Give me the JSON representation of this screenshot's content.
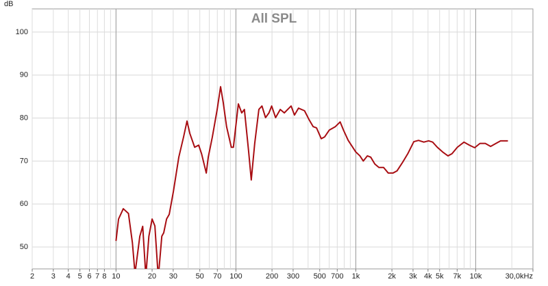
{
  "chart_data": {
    "type": "line",
    "title": "All SPL",
    "y_label": "dB",
    "xscale": "log",
    "xlim": [
      2,
      30000
    ],
    "ylim": [
      44.9,
      105.4
    ],
    "xticks": [
      2,
      3,
      4,
      5,
      6,
      7,
      8,
      10,
      20,
      30,
      50,
      70,
      100,
      200,
      300,
      500,
      700,
      {
        "value": 1000,
        "label": "1k"
      },
      {
        "value": 2000,
        "label": "2k"
      },
      {
        "value": 3000,
        "label": "3k"
      },
      {
        "value": 4000,
        "label": "4k"
      },
      {
        "value": 5000,
        "label": "5k"
      },
      {
        "value": 7000,
        "label": "7k"
      },
      {
        "value": 10000,
        "label": "10k"
      },
      {
        "value": 30000,
        "label": "30,0kHz"
      }
    ],
    "xgrid": [
      2,
      3,
      4,
      5,
      6,
      7,
      8,
      9,
      10,
      20,
      30,
      40,
      50,
      60,
      70,
      80,
      90,
      100,
      200,
      300,
      400,
      500,
      600,
      700,
      800,
      900,
      1000,
      2000,
      3000,
      4000,
      5000,
      6000,
      7000,
      8000,
      9000,
      10000,
      20000
    ],
    "xmajor": [
      10,
      100,
      1000,
      10000
    ],
    "yticks": [
      50,
      60,
      70,
      80,
      90,
      100
    ],
    "grid": true,
    "series": [
      {
        "name": "All SPL",
        "color": "#a80d12",
        "x": [
          10,
          10.5,
          11.5,
          12.7,
          13.7,
          14.4,
          15.8,
          16.7,
          17.6,
          17.8,
          18.8,
          20,
          21.1,
          22.3,
          22.8,
          24.1,
          25,
          26.4,
          27.8,
          30.1,
          33.4,
          36.6,
          39.1,
          41.3,
          45.3,
          48.9,
          51.7,
          56.6,
          58.8,
          63.6,
          69.8,
          74.5,
          78.4,
          83.6,
          91.6,
          95.3,
          104.8,
          111.8,
          117.7,
          127.4,
          134.3,
          143.5,
          155.4,
          164.9,
          176.6,
          188.6,
          198.7,
          214.3,
          234.4,
          253.3,
          270.3,
          288.6,
          308,
          332.6,
          373.5,
          408,
          440.8,
          470.5,
          515,
          549,
          601,
          675,
          740,
          789,
          864,
          1000,
          1082,
          1154,
          1248,
          1331,
          1441,
          1558,
          1704,
          1865,
          2040,
          2205,
          2444,
          2713,
          3045,
          3334,
          3694,
          4045,
          4372,
          4785,
          5300,
          5870,
          6342,
          7025,
          7985,
          8845,
          9800,
          10850,
          12020,
          13310,
          14740,
          16120,
          18560
        ],
        "values": [
          51.4,
          56.5,
          58.9,
          57.8,
          51,
          43.8,
          52.5,
          54.8,
          44.6,
          43.8,
          52.5,
          56.5,
          54.9,
          44.6,
          44.6,
          52.5,
          53.3,
          56.5,
          57.6,
          62.9,
          70.9,
          75.6,
          79.3,
          76.4,
          73.2,
          73.7,
          71.7,
          67.2,
          70.9,
          75.6,
          82,
          87.3,
          83.6,
          78,
          73.2,
          73.2,
          83.3,
          81.2,
          82,
          72.5,
          65.6,
          74.1,
          82,
          82.8,
          80.1,
          81.2,
          82.8,
          80.1,
          82,
          81.2,
          82,
          82.8,
          80.7,
          82.3,
          81.7,
          79.6,
          78,
          77.7,
          75.2,
          75.6,
          77.2,
          78,
          79.1,
          77.2,
          74.8,
          72.1,
          71.2,
          70,
          71.2,
          70.9,
          69.3,
          68.5,
          68.5,
          67.2,
          67.2,
          67.7,
          69.6,
          71.7,
          74.5,
          74.8,
          74.4,
          74.7,
          74.4,
          73.2,
          72.1,
          71.2,
          71.7,
          73.2,
          74.4,
          73.7,
          73.1,
          74.1,
          74.1,
          73.4,
          74.1,
          74.7,
          74.7
        ]
      }
    ]
  }
}
